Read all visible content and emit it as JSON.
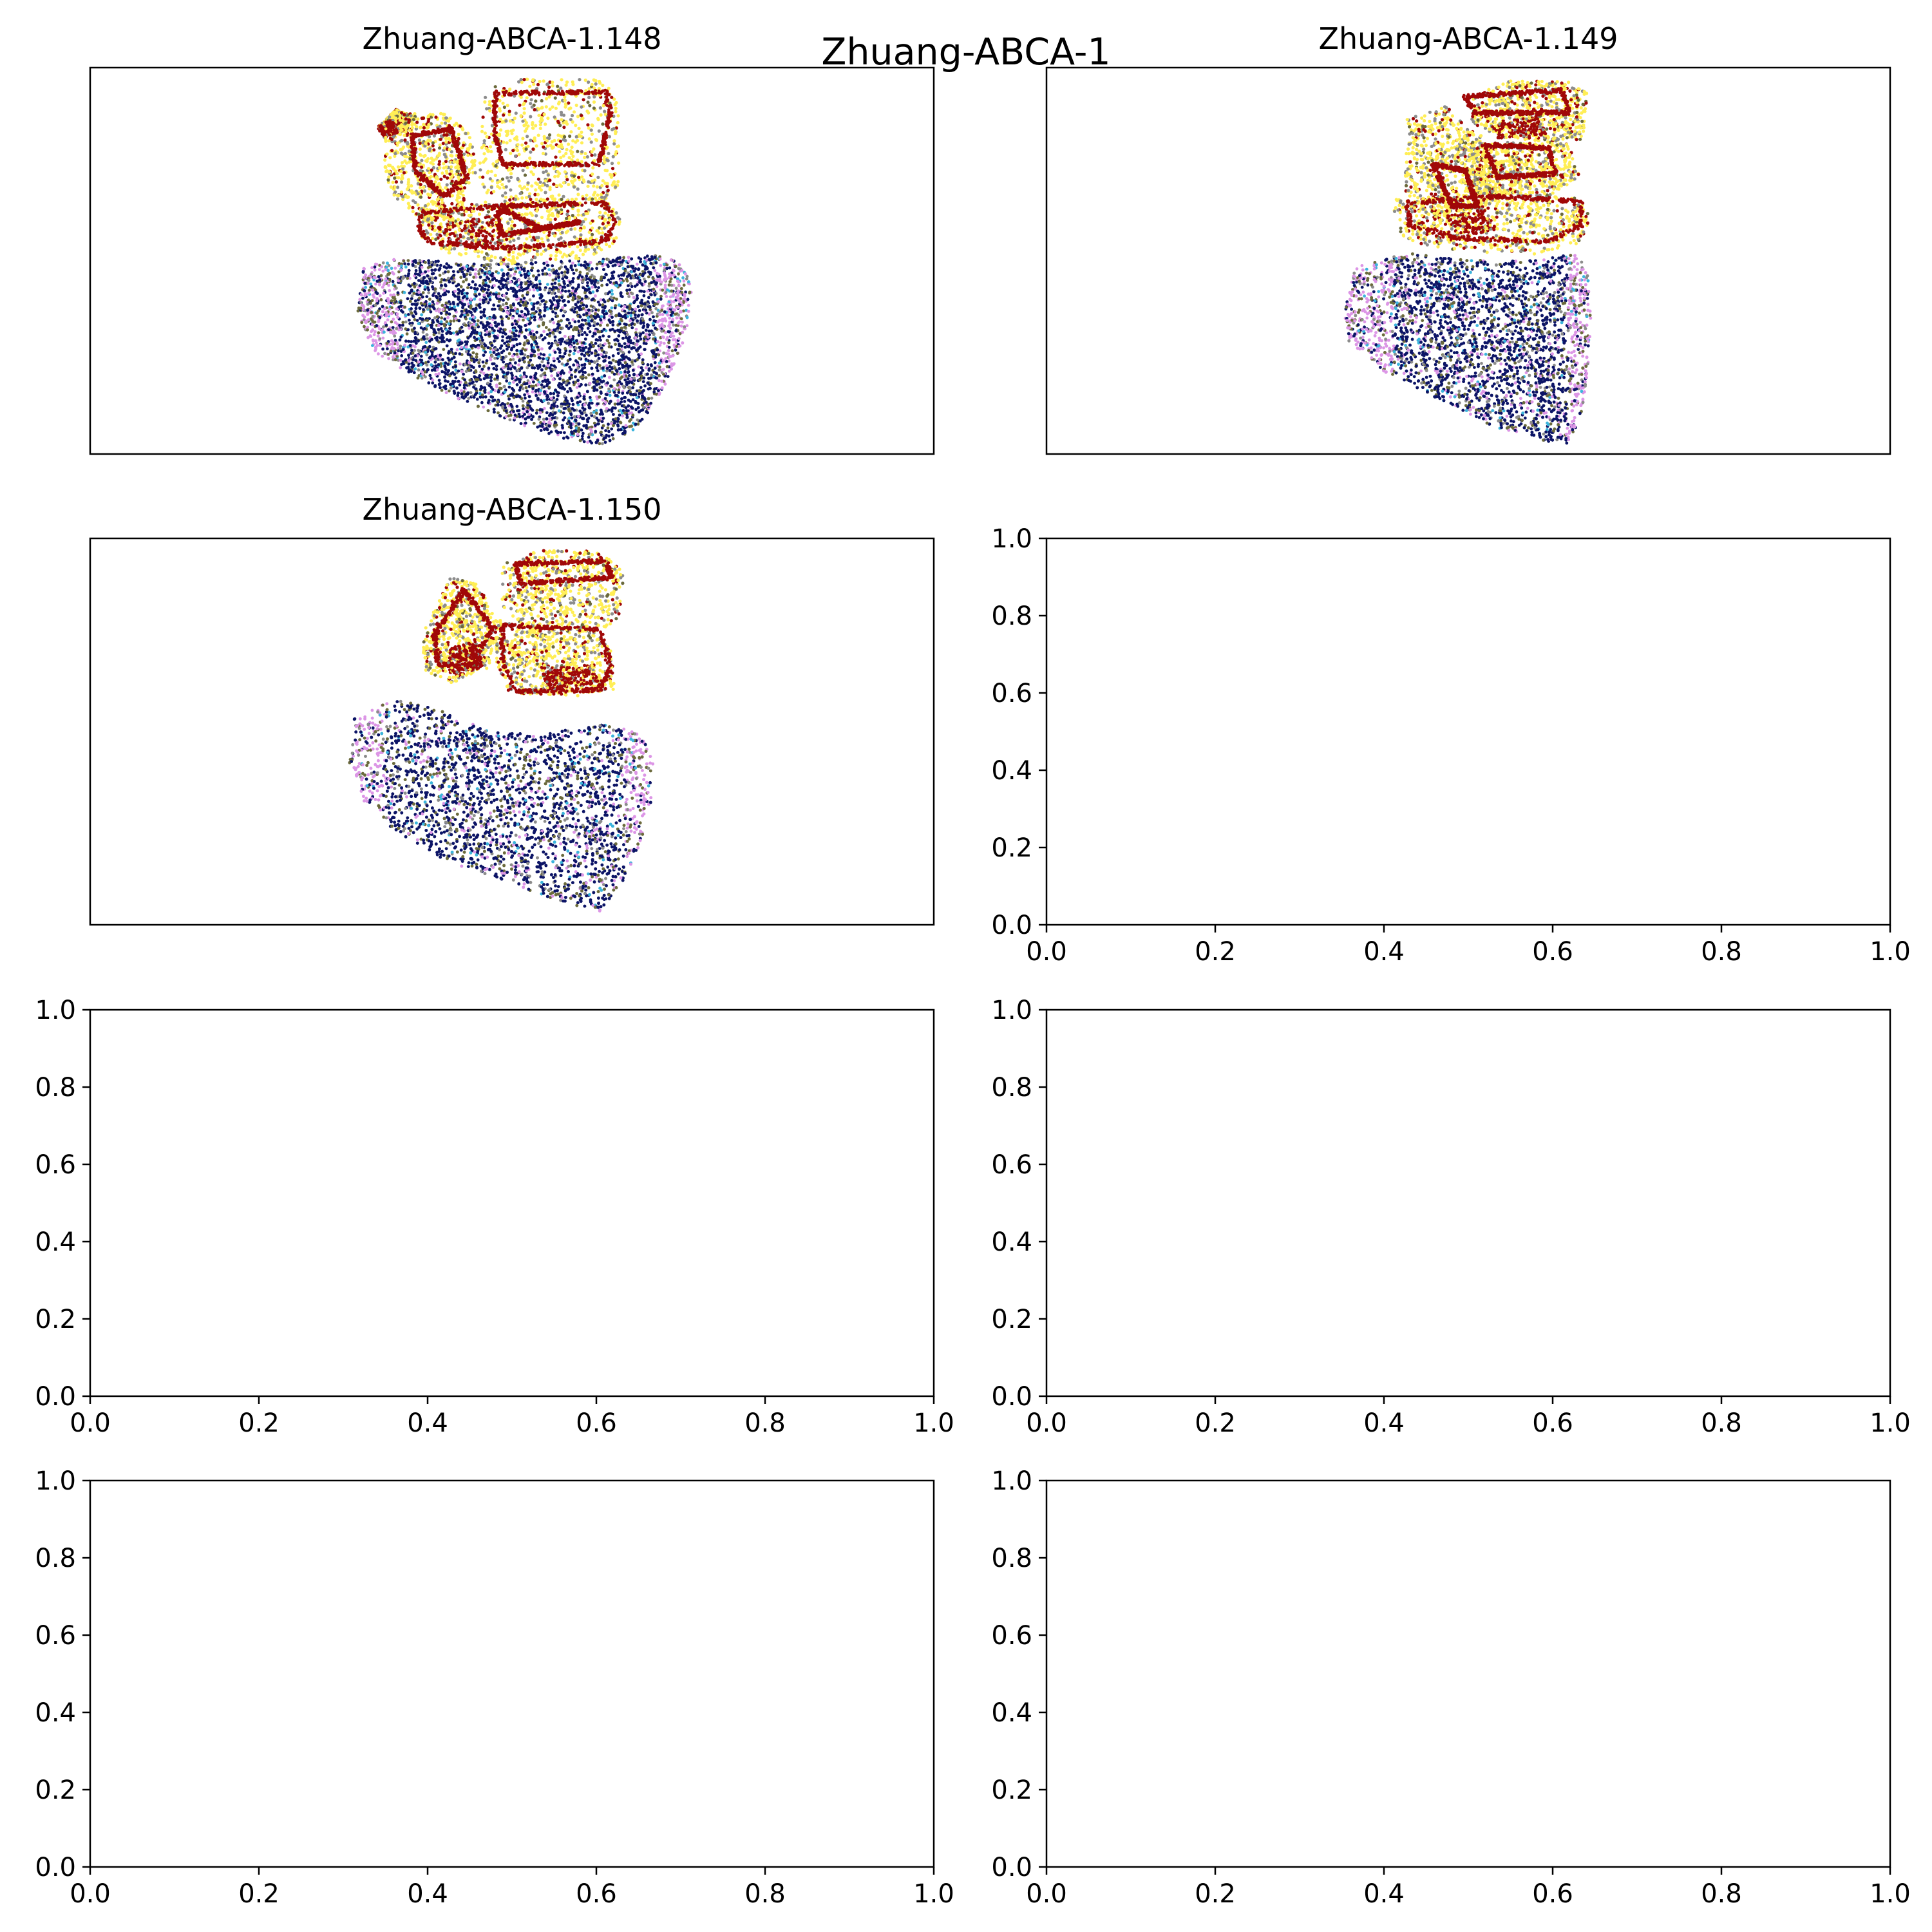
{
  "figure": {
    "suptitle": "Zhuang-ABCA-1"
  },
  "colors": {
    "axes": "#000000",
    "navy": "#0c1466",
    "violet": "#dc96e6",
    "olive": "#6b6a3c",
    "gray": "#8c8c8c",
    "cyan": "#3cb4dc",
    "yellow": "#ffee55",
    "red": "#a00808"
  },
  "chart_data": [
    {
      "type": "scatter",
      "title": "Zhuang-ABCA-1.148",
      "axis_visible": false,
      "grid": false,
      "cluster_colors": [
        "navy",
        "violet",
        "olive",
        "gray",
        "cyan",
        "yellow",
        "red"
      ]
    },
    {
      "type": "scatter",
      "title": "Zhuang-ABCA-1.149",
      "axis_visible": false,
      "grid": false,
      "cluster_colors": [
        "navy",
        "violet",
        "olive",
        "gray",
        "cyan",
        "yellow",
        "red"
      ]
    },
    {
      "type": "scatter",
      "title": "Zhuang-ABCA-1.150",
      "axis_visible": false,
      "grid": false,
      "cluster_colors": [
        "navy",
        "violet",
        "olive",
        "gray",
        "cyan",
        "yellow",
        "red"
      ]
    },
    {
      "type": "scatter",
      "title": "",
      "axis_visible": true,
      "xlim": [
        0.0,
        1.0
      ],
      "ylim": [
        0.0,
        1.0
      ],
      "xticks": [
        "0.0",
        "0.2",
        "0.4",
        "0.6",
        "0.8",
        "1.0"
      ],
      "yticks": [
        "0.0",
        "0.2",
        "0.4",
        "0.6",
        "0.8",
        "1.0"
      ],
      "grid": false
    },
    {
      "type": "scatter",
      "title": "",
      "axis_visible": true,
      "xlim": [
        0.0,
        1.0
      ],
      "ylim": [
        0.0,
        1.0
      ],
      "xticks": [
        "0.0",
        "0.2",
        "0.4",
        "0.6",
        "0.8",
        "1.0"
      ],
      "yticks": [
        "0.0",
        "0.2",
        "0.4",
        "0.6",
        "0.8",
        "1.0"
      ],
      "grid": false
    },
    {
      "type": "scatter",
      "title": "",
      "axis_visible": true,
      "xlim": [
        0.0,
        1.0
      ],
      "ylim": [
        0.0,
        1.0
      ],
      "xticks": [
        "0.0",
        "0.2",
        "0.4",
        "0.6",
        "0.8",
        "1.0"
      ],
      "yticks": [
        "0.0",
        "0.2",
        "0.4",
        "0.6",
        "0.8",
        "1.0"
      ],
      "grid": false
    },
    {
      "type": "scatter",
      "title": "",
      "axis_visible": true,
      "xlim": [
        0.0,
        1.0
      ],
      "ylim": [
        0.0,
        1.0
      ],
      "xticks": [
        "0.0",
        "0.2",
        "0.4",
        "0.6",
        "0.8",
        "1.0"
      ],
      "yticks": [
        "0.0",
        "0.2",
        "0.4",
        "0.6",
        "0.8",
        "1.0"
      ],
      "grid": false
    },
    {
      "type": "scatter",
      "title": "",
      "axis_visible": true,
      "xlim": [
        0.0,
        1.0
      ],
      "ylim": [
        0.0,
        1.0
      ],
      "xticks": [
        "0.0",
        "0.2",
        "0.4",
        "0.6",
        "0.8",
        "1.0"
      ],
      "yticks": [
        "0.0",
        "0.2",
        "0.4",
        "0.6",
        "0.8",
        "1.0"
      ],
      "grid": false
    }
  ]
}
